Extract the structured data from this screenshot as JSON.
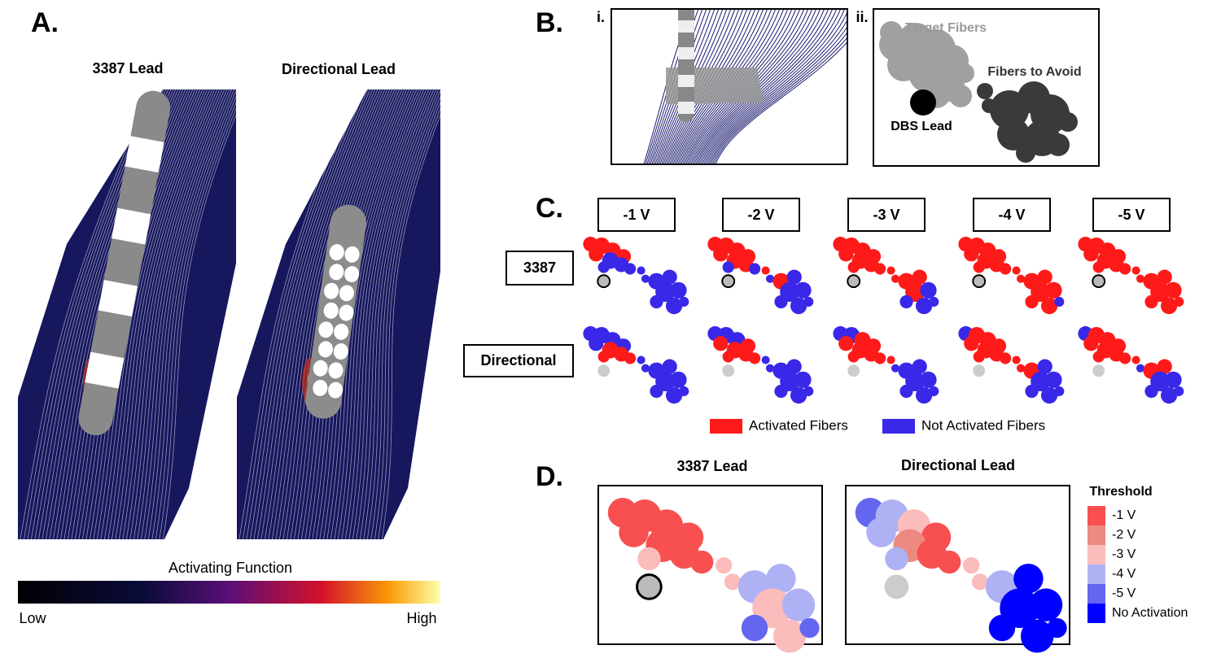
{
  "panel_a": {
    "label": "A.",
    "titles": [
      "3387 Lead",
      "Directional Lead"
    ],
    "colorbar": {
      "title": "Activating Function",
      "low": "Low",
      "high": "High"
    }
  },
  "panel_b": {
    "label": "B.",
    "sub_i": "i.",
    "sub_ii": "ii.",
    "target": "Target Fibers",
    "avoid": "Fibers to Avoid",
    "lead": "DBS Lead"
  },
  "panel_c": {
    "label": "C.",
    "voltages": [
      "-1 V",
      "-2 V",
      "-3 V",
      "-4 V",
      "-5 V"
    ],
    "rows": [
      "3387",
      "Directional"
    ],
    "legend": [
      {
        "label": "Activated Fibers",
        "color": "#ff1a1a"
      },
      {
        "label": "Not Activated Fibers",
        "color": "#3a28e8"
      }
    ]
  },
  "panel_d": {
    "label": "D.",
    "titles": [
      "3387 Lead",
      "Directional Lead"
    ],
    "legend_title": "Threshold",
    "legend": [
      {
        "label": "-1 V",
        "color": "#f85050"
      },
      {
        "label": "-2 V",
        "color": "#ec8a82"
      },
      {
        "label": "-3 V",
        "color": "#fbbcbc"
      },
      {
        "label": "-4 V",
        "color": "#aeb2f4"
      },
      {
        "label": "-5 V",
        "color": "#6466f0"
      },
      {
        "label": "No Activation",
        "color": "#0000ff"
      }
    ]
  }
}
